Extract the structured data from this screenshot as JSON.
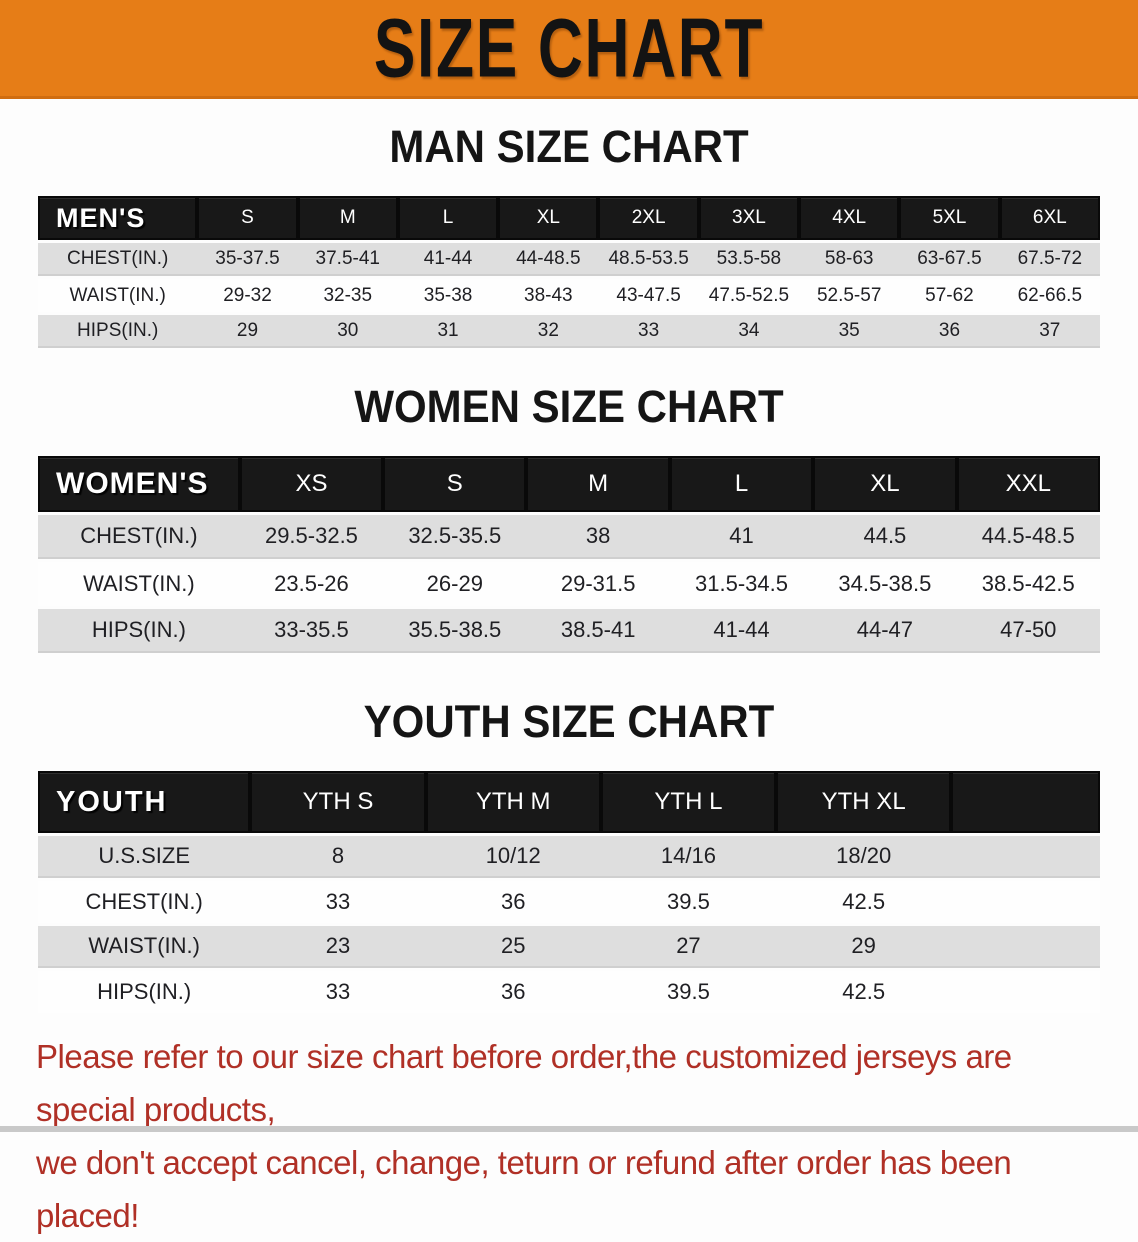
{
  "banner": {
    "title": "SIZE CHART",
    "bg_color": "#e67d17",
    "text_color": "#131313"
  },
  "sections": [
    {
      "heading": "MAN SIZE CHART",
      "table": {
        "corner": "MEN'S",
        "sizes": [
          "S",
          "M",
          "L",
          "XL",
          "2XL",
          "3XL",
          "4XL",
          "5XL",
          "6XL"
        ],
        "rows": [
          {
            "label": "CHEST(IN.)",
            "values": [
              "35-37.5",
              "37.5-41",
              "41-44",
              "44-48.5",
              "48.5-53.5",
              "53.5-58",
              "58-63",
              "63-67.5",
              "67.5-72"
            ]
          },
          {
            "label": "WAIST(IN.)",
            "values": [
              "29-32",
              "32-35",
              "35-38",
              "38-43",
              "43-47.5",
              "47.5-52.5",
              "52.5-57",
              "57-62",
              "62-66.5"
            ]
          },
          {
            "label": "HIPS(IN.)",
            "values": [
              "29",
              "30",
              "31",
              "32",
              "33",
              "34",
              "35",
              "36",
              "37"
            ]
          }
        ]
      }
    },
    {
      "heading": "WOMEN SIZE CHART",
      "table": {
        "corner": "WOMEN'S",
        "sizes": [
          "XS",
          "S",
          "M",
          "L",
          "XL",
          "XXL"
        ],
        "rows": [
          {
            "label": "CHEST(IN.)",
            "values": [
              "29.5-32.5",
              "32.5-35.5",
              "38",
              "41",
              "44.5",
              "44.5-48.5"
            ]
          },
          {
            "label": "WAIST(IN.)",
            "values": [
              "23.5-26",
              "26-29",
              "29-31.5",
              "31.5-34.5",
              "34.5-38.5",
              "38.5-42.5"
            ]
          },
          {
            "label": "HIPS(IN.)",
            "values": [
              "33-35.5",
              "35.5-38.5",
              "38.5-41",
              "41-44",
              "44-47",
              "47-50"
            ]
          }
        ]
      }
    },
    {
      "heading": "YOUTH SIZE CHART",
      "table": {
        "corner": "YOUTH",
        "sizes": [
          "YTH S",
          "YTH M",
          "YTH L",
          "YTH XL"
        ],
        "rows": [
          {
            "label": "U.S.SIZE",
            "values": [
              "8",
              "10/12",
              "14/16",
              "18/20"
            ]
          },
          {
            "label": "CHEST(IN.)",
            "values": [
              "33",
              "36",
              "39.5",
              "42.5"
            ]
          },
          {
            "label": "WAIST(IN.)",
            "values": [
              "23",
              "25",
              "27",
              "29"
            ]
          },
          {
            "label": "HIPS(IN.)",
            "values": [
              "33",
              "36",
              "39.5",
              "42.5"
            ]
          }
        ]
      }
    }
  ],
  "footer_note": {
    "line1": "Please refer to our size chart before order,the customized jerseys are special products,",
    "line2": "we don't accept cancel, change, teturn or refund after order has been placed!",
    "color": "#b03026"
  }
}
